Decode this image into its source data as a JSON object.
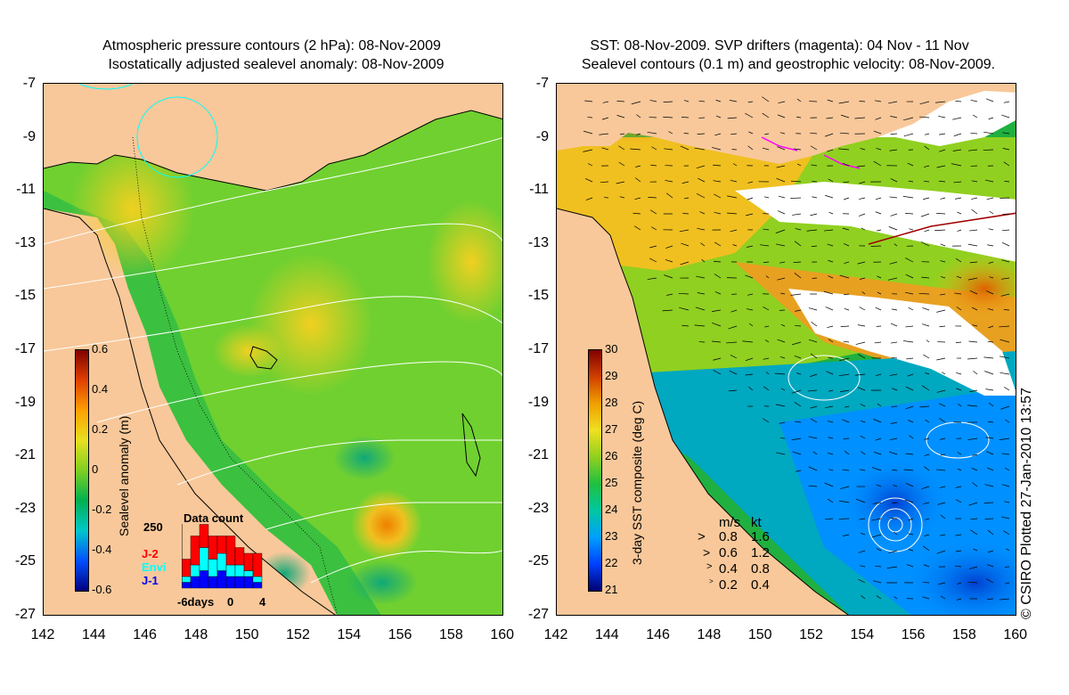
{
  "left_panel": {
    "title_line1": "Atmospheric pressure contours (2 hPa): 08-Nov-2009",
    "title_line2": "Isostatically adjusted sealevel anomaly: 08-Nov-2009",
    "colorbar_title": "Sealevel anomaly (m)",
    "colorbar_ticks": [
      "0.6",
      "0.4",
      "0.2",
      "0",
      "-0.2",
      "-0.4",
      "-0.6"
    ],
    "inset": {
      "title": "Data count",
      "ymax_label": "250",
      "legend": [
        {
          "name": "J-2",
          "color": "#ff0000"
        },
        {
          "name": "Envi",
          "color": "#00ffff"
        },
        {
          "name": "J-1",
          "color": "#0000ff"
        }
      ],
      "xlabels": [
        "-6days",
        "0",
        "4"
      ]
    }
  },
  "right_panel": {
    "title_line1": "SST: 08-Nov-2009. SVP drifters (magenta): 04 Nov - 11 Nov",
    "title_line2": "Sealevel contours (0.1 m) and geostrophic velocity: 08-Nov-2009.",
    "colorbar_title": "3-day SST composite (deg C)",
    "colorbar_ticks": [
      "30",
      "29",
      "28",
      "27",
      "26",
      "25",
      "24",
      "23",
      "22",
      "21"
    ],
    "speed_legend": {
      "header_ms": "m/s",
      "header_kt": "kt",
      "rows": [
        {
          "ms": "0.8",
          "kt": "1.6"
        },
        {
          "ms": "0.6",
          "kt": "1.2"
        },
        {
          "ms": "0.4",
          "kt": "0.8"
        },
        {
          "ms": "0.2",
          "kt": "0.4"
        }
      ]
    }
  },
  "axes": {
    "y_ticks": [
      "-7",
      "-9",
      "-11",
      "-13",
      "-15",
      "-17",
      "-19",
      "-21",
      "-23",
      "-25",
      "-27"
    ],
    "x_ticks": [
      "142",
      "144",
      "146",
      "148",
      "150",
      "152",
      "154",
      "156",
      "158",
      "160"
    ]
  },
  "copyright": "© CSIRO Plotted 27-Jan-2010 13:57",
  "colors": {
    "land": "#f8c89a",
    "sla_ramp": [
      "#000080",
      "#0050ff",
      "#00c8c8",
      "#00b050",
      "#80d020",
      "#e8e020",
      "#ffa000",
      "#e04000",
      "#800000"
    ],
    "sst_ramp": [
      "#000070",
      "#0040ff",
      "#00a0ff",
      "#00c8a0",
      "#20c040",
      "#90d020",
      "#f0e020",
      "#f0a000",
      "#d04000",
      "#800000"
    ]
  },
  "inset_bars": {
    "j1": [
      1,
      2,
      3,
      2,
      3,
      2,
      2,
      2,
      1
    ],
    "envi": [
      1,
      2,
      4,
      3,
      3,
      2,
      2,
      1,
      1
    ],
    "j2": [
      3,
      5,
      4,
      4,
      3,
      5,
      3,
      3,
      4
    ]
  }
}
